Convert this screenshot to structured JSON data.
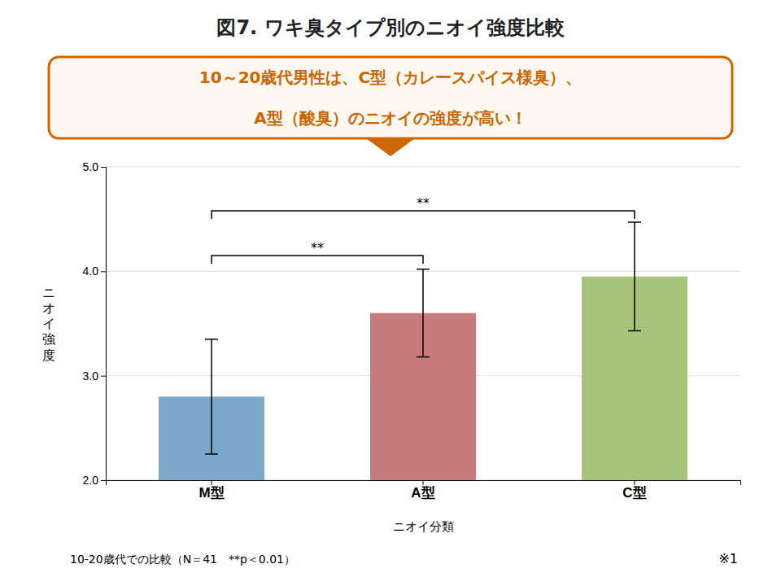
{
  "chart_data": {
    "type": "bar",
    "title": "図7. ワキ臭タイプ別のニオイ強度比較",
    "annotations": [
      "10～20歳代男性は、C型（カレースパイス様臭）、",
      "A型（酸臭）のニオイの強度が高い！"
    ],
    "categories": [
      "M型",
      "A型",
      "C型"
    ],
    "values": [
      2.8,
      3.6,
      3.95
    ],
    "errors": [
      0.55,
      0.42,
      0.52
    ],
    "colors": [
      "#7ba7c9",
      "#c97a7a",
      "#a8c47a"
    ],
    "xlabel": "ニオイ分類",
    "ylabel": "ニオイ強度",
    "ylim": [
      2.0,
      5.0
    ],
    "yticks": [
      {
        "value": 2.0,
        "label": "2.0"
      },
      {
        "value": 3.0,
        "label": "3.0"
      },
      {
        "value": 4.0,
        "label": "4.0"
      },
      {
        "value": 5.0,
        "label": "5.0"
      }
    ],
    "grid": true,
    "brackets": [
      {
        "from": "M型",
        "to": "A型",
        "y": 4.15,
        "label": "**"
      },
      {
        "from": "M型",
        "to": "C型",
        "y": 4.58,
        "label": "**"
      }
    ],
    "footnotes": [
      "10-20歳代での比較（N＝41　**p＜0.01）",
      "※1"
    ]
  }
}
